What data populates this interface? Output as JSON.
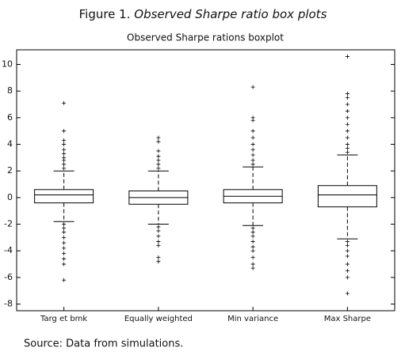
{
  "figure_label": "Figure 1.",
  "figure_title": "Observed Sharpe ratio box plots",
  "source": "Source: Data from simulations.",
  "chart_data": {
    "type": "box",
    "title": "Observed Sharpe rations boxplot",
    "categories": [
      "Targ et bmk",
      "Equally weighted",
      "Min variance",
      "Max Sharpe"
    ],
    "whisker_low": [
      -1.8,
      -2.0,
      -2.1,
      -3.1
    ],
    "q1": [
      -0.4,
      -0.5,
      -0.4,
      -0.7
    ],
    "median": [
      0.2,
      0.0,
      0.1,
      0.2
    ],
    "q3": [
      0.6,
      0.5,
      0.6,
      0.9
    ],
    "whisker_high": [
      2.0,
      2.0,
      2.3,
      3.2
    ],
    "outliers": [
      [
        2.2,
        2.5,
        2.8,
        3.0,
        3.3,
        3.6,
        4.0,
        4.3,
        5.0,
        7.1,
        -2.0,
        -2.3,
        -2.6,
        -3.0,
        -3.4,
        -3.8,
        -4.2,
        -4.6,
        -5.0,
        -6.2
      ],
      [
        2.2,
        2.5,
        2.8,
        3.1,
        3.5,
        4.2,
        4.5,
        -2.2,
        -2.5,
        -2.9,
        -3.3,
        -3.6,
        -4.5,
        -4.8
      ],
      [
        2.5,
        2.8,
        3.2,
        3.6,
        4.0,
        4.5,
        5.0,
        5.8,
        6.0,
        8.3,
        -2.3,
        -2.6,
        -2.9,
        -3.3,
        -3.7,
        -4.0,
        -4.5,
        -5.0,
        -5.3
      ],
      [
        3.4,
        3.7,
        4.0,
        4.5,
        5.0,
        5.5,
        6.0,
        6.5,
        7.0,
        7.5,
        7.8,
        10.6,
        -3.3,
        -3.6,
        -4.0,
        -4.4,
        -5.0,
        -5.5,
        -6.0,
        -7.2
      ]
    ],
    "color": "#000000",
    "ylim": [
      -8.5,
      11.1
    ],
    "yticks": [
      -8,
      -6,
      -4,
      -2,
      0,
      2,
      4,
      6,
      8,
      10
    ]
  }
}
